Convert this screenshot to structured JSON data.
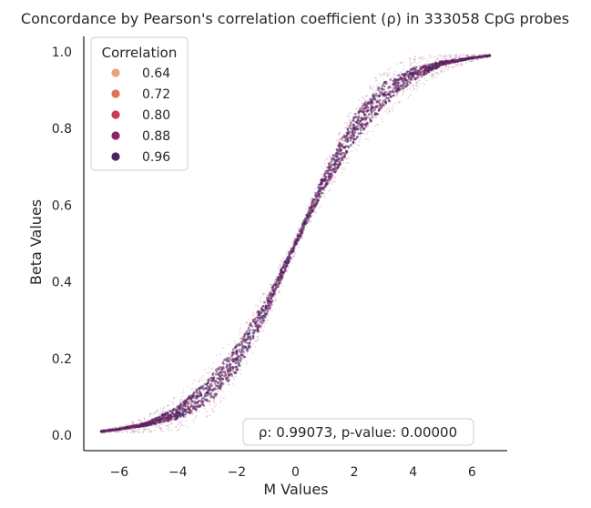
{
  "chart_data": {
    "type": "scatter",
    "title": "Concordance by Pearson's correlation coefficient (ρ) in 333058 CpG probes",
    "xlabel": "M Values",
    "ylabel": "Beta Values",
    "xlim": [
      -7.2,
      7.2
    ],
    "ylim": [
      -0.04,
      1.04
    ],
    "xticks": [
      -6,
      -4,
      -2,
      0,
      2,
      4,
      6
    ],
    "xtick_labels": [
      "−6",
      "−4",
      "−2",
      "0",
      "2",
      "4",
      "6"
    ],
    "yticks": [
      0.0,
      0.2,
      0.4,
      0.6,
      0.8,
      1.0
    ],
    "ytick_labels": [
      "0.0",
      "0.2",
      "0.4",
      "0.6",
      "0.8",
      "1.0"
    ],
    "grid": false,
    "legend": {
      "title": "Correlation",
      "placement": "top-left",
      "entries": [
        {
          "label": "0.64",
          "color": "#e9a27c"
        },
        {
          "label": "0.72",
          "color": "#e2725b"
        },
        {
          "label": "0.80",
          "color": "#c8395a"
        },
        {
          "label": "0.88",
          "color": "#8f2468"
        },
        {
          "label": "0.96",
          "color": "#4e2460"
        }
      ]
    },
    "series": [
      {
        "x": [
          -6.6,
          -6.0,
          -5.0,
          -4.0,
          -3.0,
          -2.0,
          -1.0,
          0.0,
          1.0,
          2.0,
          3.0,
          4.0,
          5.0,
          6.0,
          6.6
        ],
        "y": [
          0.01,
          0.016,
          0.03,
          0.059,
          0.111,
          0.2,
          0.333,
          0.5,
          0.667,
          0.8,
          0.889,
          0.941,
          0.97,
          0.984,
          0.99
        ]
      }
    ],
    "annotation": "ρ: 0.99073, p-value: 0.00000"
  }
}
